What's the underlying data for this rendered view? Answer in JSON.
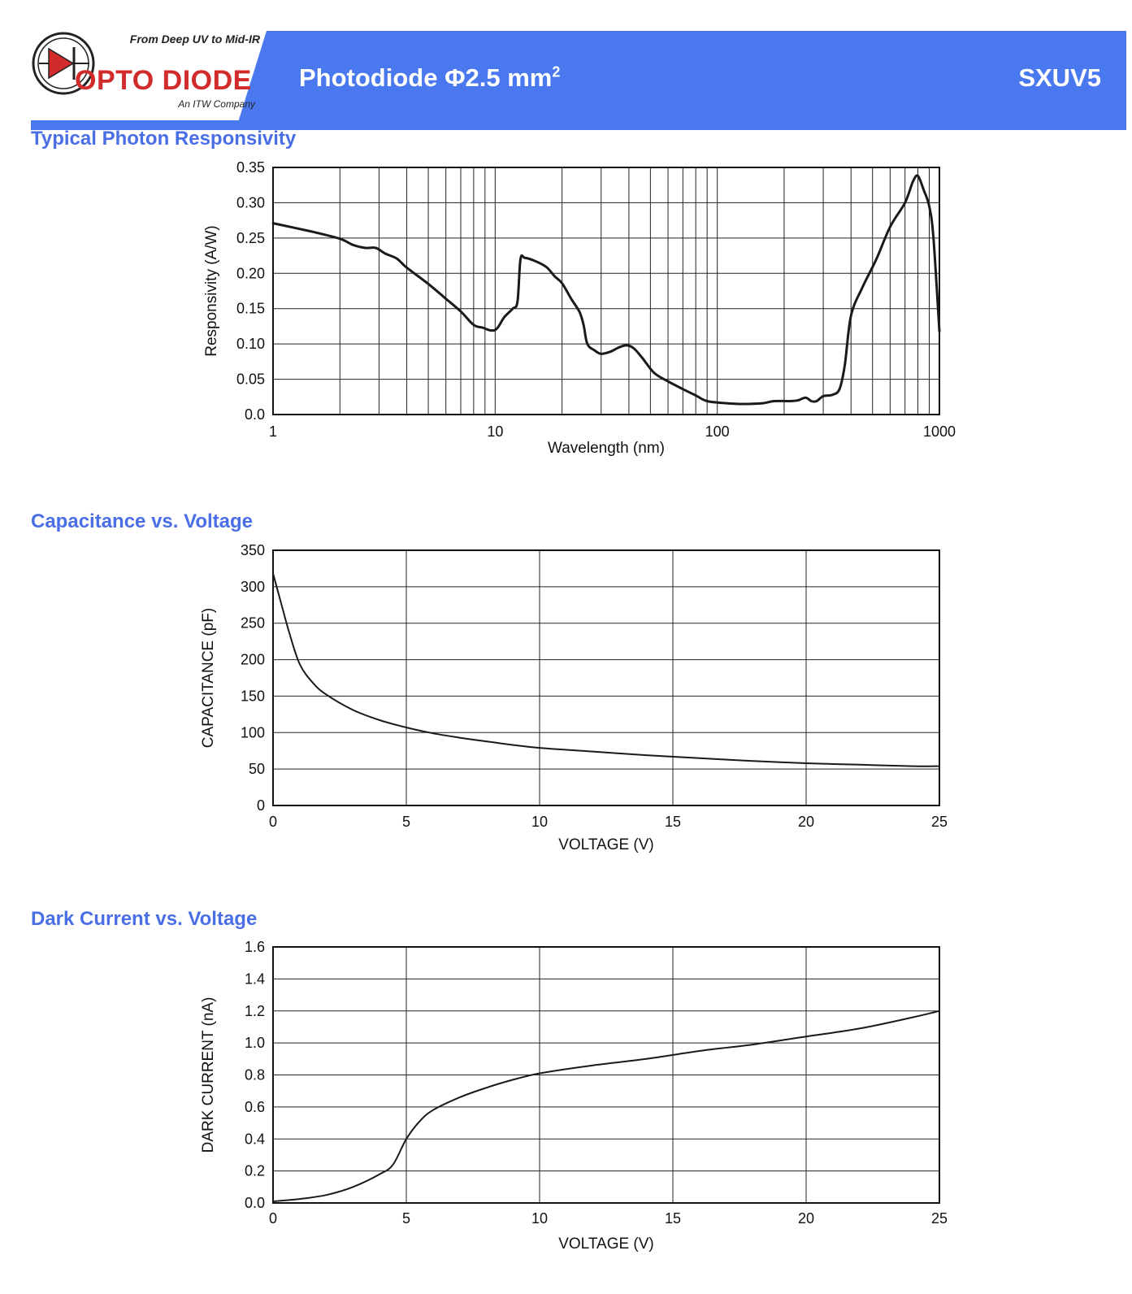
{
  "header": {
    "tagline": "From Deep UV to Mid-IR",
    "brand": "OPTO DIODE",
    "brand_sub": "An ITW Company",
    "title": "Photodiode Φ2.5 mm",
    "title_sup": "2",
    "part_number": "SXUV5",
    "banner_color": "#4a78ef",
    "logo_icon": "diode-logo-icon"
  },
  "sections": {
    "responsivity": "Typical Photon Responsivity",
    "capacitance": "Capacitance vs. Voltage",
    "dark_current": "Dark Current vs. Voltage"
  },
  "chart_data": [
    {
      "id": "responsivity",
      "type": "line",
      "xscale": "log",
      "xlabel": "Wavelength (nm)",
      "ylabel": "Responsivity (A/W)",
      "xlim": [
        1,
        1000
      ],
      "ylim": [
        0,
        0.35
      ],
      "xticks": [
        1,
        10,
        100,
        1000
      ],
      "xtick_labels": [
        "1",
        "10",
        "100",
        "1000"
      ],
      "yticks": [
        0,
        0.05,
        0.1,
        0.15,
        0.2,
        0.25,
        0.3,
        0.35
      ],
      "ytick_labels": [
        "0.0",
        "0.05",
        "0.10",
        "0.15",
        "0.20",
        "0.25",
        "0.30",
        "0.35"
      ],
      "grid": true,
      "series": [
        {
          "values": [
            [
              1,
              0.271
            ],
            [
              1.5,
              0.259
            ],
            [
              2,
              0.249
            ],
            [
              2.3,
              0.24
            ],
            [
              2.6,
              0.236
            ],
            [
              2.9,
              0.236
            ],
            [
              3.2,
              0.228
            ],
            [
              3.6,
              0.221
            ],
            [
              4,
              0.208
            ],
            [
              5,
              0.185
            ],
            [
              6,
              0.164
            ],
            [
              7,
              0.146
            ],
            [
              8,
              0.127
            ],
            [
              8.8,
              0.123
            ],
            [
              9.6,
              0.119
            ],
            [
              10.2,
              0.122
            ],
            [
              11,
              0.138
            ],
            [
              12,
              0.15
            ],
            [
              12.6,
              0.16
            ],
            [
              13.0,
              0.22
            ],
            [
              13.6,
              0.222
            ],
            [
              15,
              0.218
            ],
            [
              17,
              0.209
            ],
            [
              18.5,
              0.196
            ],
            [
              20,
              0.186
            ],
            [
              22,
              0.164
            ],
            [
              24,
              0.145
            ],
            [
              25,
              0.127
            ],
            [
              26,
              0.1
            ],
            [
              28,
              0.091
            ],
            [
              30,
              0.086
            ],
            [
              33,
              0.089
            ],
            [
              36,
              0.095
            ],
            [
              39,
              0.098
            ],
            [
              42,
              0.094
            ],
            [
              46,
              0.08
            ],
            [
              52,
              0.059
            ],
            [
              60,
              0.047
            ],
            [
              70,
              0.036
            ],
            [
              80,
              0.027
            ],
            [
              90,
              0.019
            ],
            [
              110,
              0.016
            ],
            [
              130,
              0.015
            ],
            [
              160,
              0.016
            ],
            [
              180,
              0.019
            ],
            [
              210,
              0.019
            ],
            [
              230,
              0.02
            ],
            [
              250,
              0.024
            ],
            [
              265,
              0.019
            ],
            [
              280,
              0.019
            ],
            [
              300,
              0.026
            ],
            [
              330,
              0.028
            ],
            [
              355,
              0.036
            ],
            [
              375,
              0.07
            ],
            [
              400,
              0.14
            ],
            [
              450,
              0.18
            ],
            [
              520,
              0.22
            ],
            [
              600,
              0.266
            ],
            [
              700,
              0.3
            ],
            [
              760,
              0.33
            ],
            [
              800,
              0.338
            ],
            [
              850,
              0.318
            ],
            [
              900,
              0.295
            ],
            [
              940,
              0.25
            ],
            [
              1000,
              0.118
            ]
          ]
        }
      ]
    },
    {
      "id": "capacitance",
      "type": "line",
      "xlabel": "VOLTAGE (V)",
      "ylabel": "CAPACITANCE (pF)",
      "xlim": [
        0,
        25
      ],
      "ylim": [
        0,
        350
      ],
      "xticks": [
        0,
        5,
        10,
        15,
        20,
        25
      ],
      "xtick_labels": [
        "0",
        "5",
        "10",
        "15",
        "20",
        "25"
      ],
      "yticks": [
        0,
        50,
        100,
        150,
        200,
        250,
        300,
        350
      ],
      "ytick_labels": [
        "0",
        "50",
        "100",
        "150",
        "200",
        "250",
        "300",
        "350"
      ],
      "grid": true,
      "series": [
        {
          "values": [
            [
              0,
              318
            ],
            [
              0.3,
              278
            ],
            [
              0.6,
              238
            ],
            [
              1,
              194
            ],
            [
              1.5,
              168
            ],
            [
              2,
              152
            ],
            [
              3,
              131
            ],
            [
              4,
              117
            ],
            [
              5,
              107
            ],
            [
              6,
              99
            ],
            [
              7,
              93
            ],
            [
              8,
              88
            ],
            [
              9,
              83
            ],
            [
              10,
              79
            ],
            [
              12,
              74
            ],
            [
              14,
              69
            ],
            [
              16,
              65
            ],
            [
              18,
              61
            ],
            [
              20,
              58
            ],
            [
              22,
              56
            ],
            [
              24,
              54
            ],
            [
              25,
              54
            ]
          ]
        }
      ]
    },
    {
      "id": "dark_current",
      "type": "line",
      "xlabel": "VOLTAGE (V)",
      "ylabel": "DARK CURRENT (nA)",
      "xlim": [
        0,
        25
      ],
      "ylim": [
        0,
        1.6
      ],
      "xticks": [
        0,
        5,
        10,
        15,
        20,
        25
      ],
      "xtick_labels": [
        "0",
        "5",
        "10",
        "15",
        "20",
        "25"
      ],
      "yticks": [
        0,
        0.2,
        0.4,
        0.6,
        0.8,
        1.0,
        1.2,
        1.4,
        1.6
      ],
      "ytick_labels": [
        "0.0",
        "0.2",
        "0.4",
        "0.6",
        "0.8",
        "1.0",
        "1.2",
        "1.4",
        "1.6"
      ],
      "grid": true,
      "series": [
        {
          "values": [
            [
              0,
              0.01
            ],
            [
              1,
              0.025
            ],
            [
              2,
              0.05
            ],
            [
              3,
              0.1
            ],
            [
              4,
              0.18
            ],
            [
              4.5,
              0.24
            ],
            [
              5,
              0.4
            ],
            [
              5.5,
              0.51
            ],
            [
              6,
              0.58
            ],
            [
              7,
              0.66
            ],
            [
              8,
              0.72
            ],
            [
              9,
              0.77
            ],
            [
              10,
              0.81
            ],
            [
              12,
              0.86
            ],
            [
              14,
              0.9
            ],
            [
              16,
              0.95
            ],
            [
              18,
              0.99
            ],
            [
              20,
              1.04
            ],
            [
              22,
              1.09
            ],
            [
              24,
              1.16
            ],
            [
              25,
              1.2
            ]
          ]
        }
      ]
    }
  ]
}
